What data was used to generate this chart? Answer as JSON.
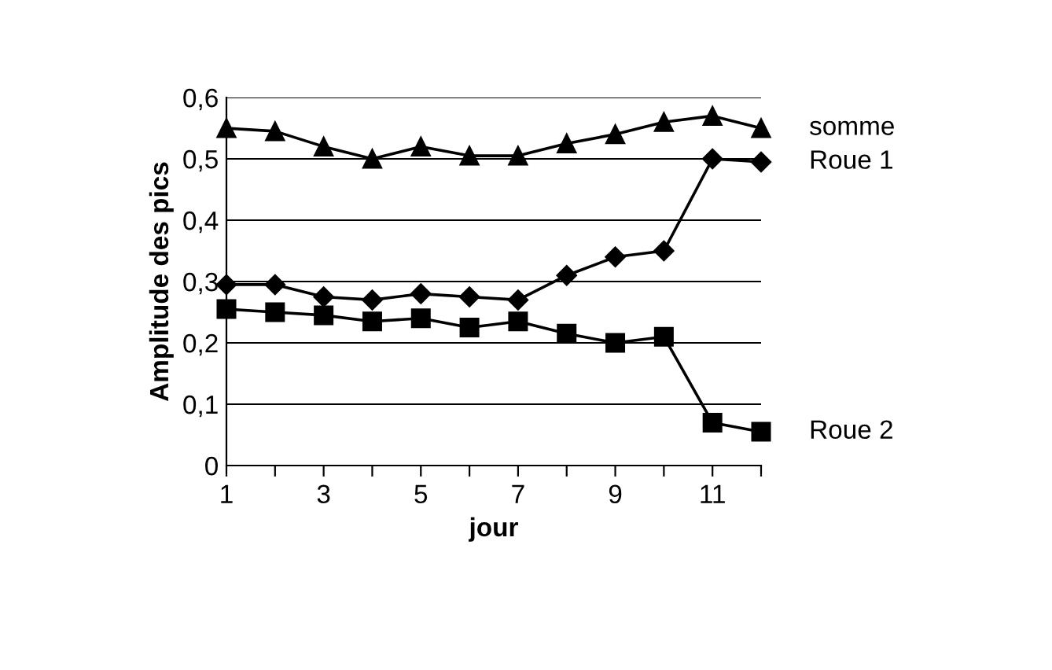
{
  "chart_data": {
    "type": "line",
    "xlabel": "jour",
    "ylabel": "Amplitude des pics",
    "x": [
      1,
      2,
      3,
      4,
      5,
      6,
      7,
      8,
      9,
      10,
      11,
      12
    ],
    "series": [
      {
        "name": "somme",
        "color": "#000000",
        "marker": "triangle",
        "values": [
          0.55,
          0.545,
          0.52,
          0.5,
          0.52,
          0.505,
          0.505,
          0.525,
          0.54,
          0.56,
          0.57,
          0.55
        ]
      },
      {
        "name": "Roue 1",
        "color": "#000000",
        "marker": "diamond",
        "values": [
          0.295,
          0.295,
          0.275,
          0.27,
          0.28,
          0.275,
          0.27,
          0.31,
          0.34,
          0.35,
          0.5,
          0.495
        ]
      },
      {
        "name": "Roue 2",
        "color": "#000000",
        "marker": "square",
        "values": [
          0.255,
          0.25,
          0.245,
          0.235,
          0.24,
          0.225,
          0.235,
          0.215,
          0.2,
          0.21,
          0.07,
          0.055
        ]
      }
    ],
    "xlim": [
      1,
      12
    ],
    "xticks": [
      1,
      {
        "value": 2,
        "label": null
      },
      3,
      {
        "value": 4,
        "label": null
      },
      5,
      {
        "value": 6,
        "label": null
      },
      7,
      {
        "value": 8,
        "label": null
      },
      9,
      {
        "value": 10,
        "label": null
      },
      11,
      {
        "value": 12,
        "label": null
      }
    ],
    "ylim": [
      0,
      0.6
    ],
    "yticks": [
      {
        "value": 0,
        "label": "0"
      },
      {
        "value": 0.1,
        "label": "0,1"
      },
      {
        "value": 0.2,
        "label": "0,2"
      },
      {
        "value": 0.3,
        "label": "0,3"
      },
      {
        "value": 0.4,
        "label": "0,4"
      },
      {
        "value": 0.5,
        "label": "0,5"
      },
      {
        "value": 0.6,
        "label": "0,6"
      }
    ],
    "grid": "y",
    "legend": false,
    "line_style": "solid"
  }
}
